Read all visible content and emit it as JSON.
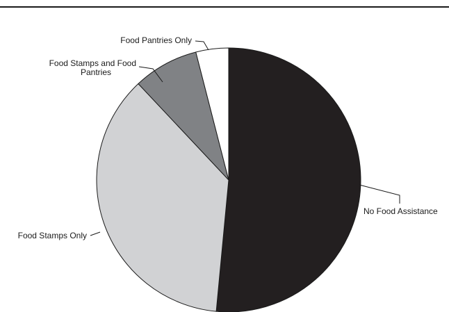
{
  "chart_data": {
    "type": "pie",
    "start": "top",
    "direction": "clockwise",
    "slices": [
      {
        "label": "No Food Assistance",
        "value": 51.5,
        "color": "#231f20"
      },
      {
        "label": "Food Stamps Only",
        "value": 36.5,
        "color": "#d1d2d4"
      },
      {
        "label": "Food Stamps and Food Pantries",
        "value": 8.0,
        "color": "#808285"
      },
      {
        "label": "Food Pantries Only",
        "value": 4.0,
        "color": "#ffffff"
      }
    ],
    "labels": [
      {
        "lines": [
          "No Food Assistance"
        ]
      },
      {
        "lines": [
          "Food Stamps Only"
        ]
      },
      {
        "lines": [
          "Food Stamps and Food",
          "Pantries"
        ]
      },
      {
        "lines": [
          "Food Pantries Only"
        ]
      }
    ]
  }
}
